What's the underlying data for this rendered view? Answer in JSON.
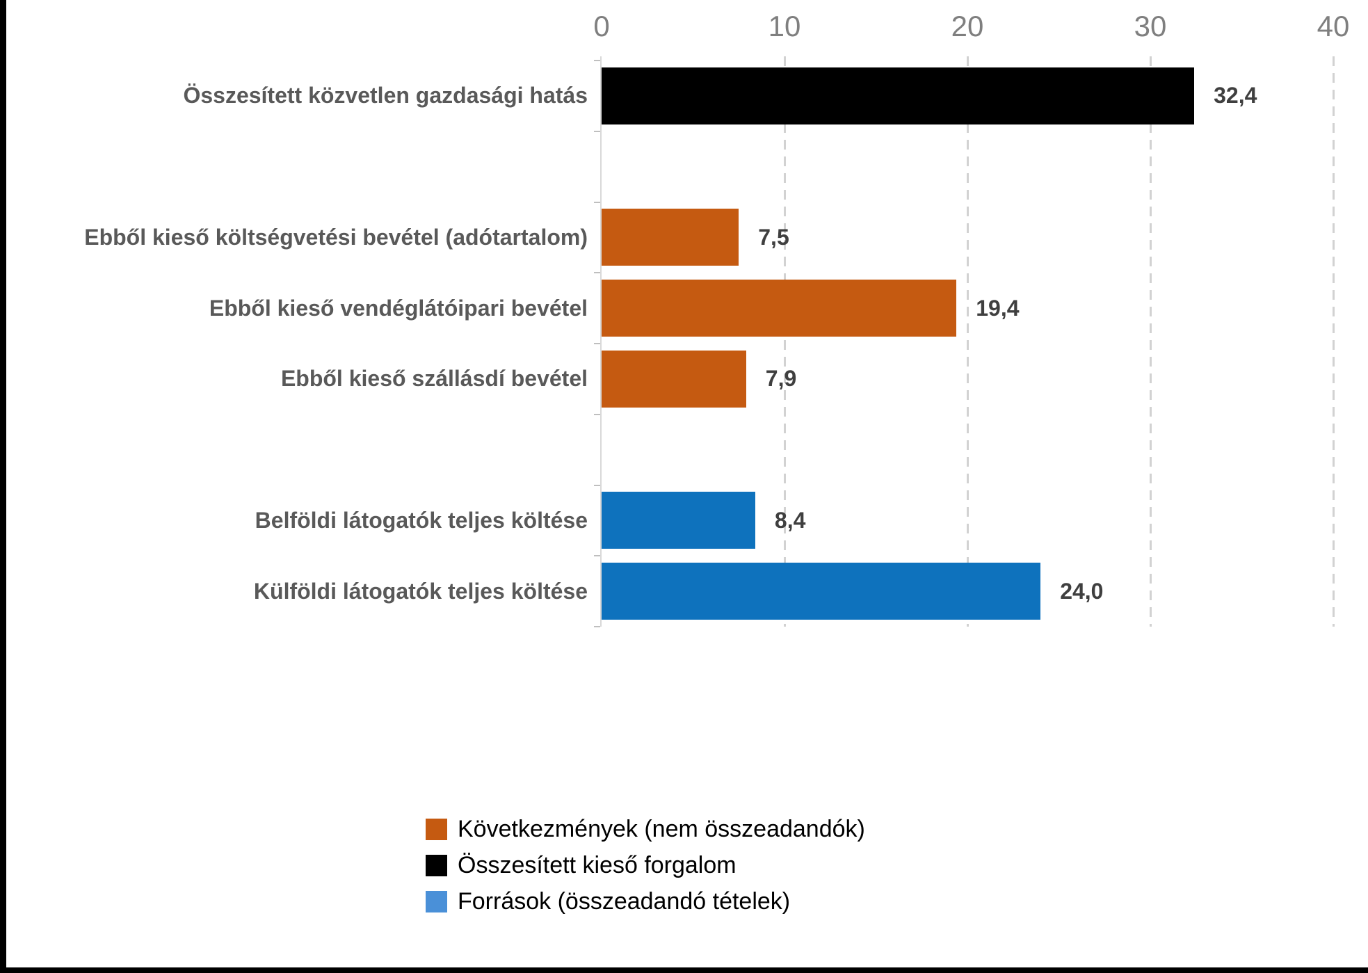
{
  "chart_data": {
    "type": "bar",
    "orientation": "horizontal",
    "title": "",
    "x_axis": {
      "position": "top",
      "min": 0,
      "max": 40,
      "ticks": [
        0,
        10,
        20,
        30,
        40
      ],
      "gridlines": "dashed-vertical"
    },
    "rows": [
      {
        "label": "Összesített közvetlen gazdasági hatás",
        "value": 32.4,
        "value_label": "32,4",
        "series": "Összesített kieső forgalom",
        "color": "#000000"
      },
      {
        "label": "",
        "value": null,
        "value_label": "",
        "series": "",
        "color": ""
      },
      {
        "label": "Ebből kieső költségvetési bevétel (adótartalom)",
        "value": 7.5,
        "value_label": "7,5",
        "series": "Következmények (nem összeadandók)",
        "color": "#C55A11"
      },
      {
        "label": "Ebből kieső vendéglátóipari bevétel",
        "value": 19.4,
        "value_label": "19,4",
        "series": "Következmények (nem összeadandók)",
        "color": "#C55A11"
      },
      {
        "label": "Ebből kieső szállásdí bevétel",
        "value": 7.9,
        "value_label": "7,9",
        "series": "Következmények (nem összeadandók)",
        "color": "#C55A11"
      },
      {
        "label": "",
        "value": null,
        "value_label": "",
        "series": "",
        "color": ""
      },
      {
        "label": "Belföldi látogatók teljes költése",
        "value": 8.4,
        "value_label": "8,4",
        "series": "Források (összeadandó tételek)",
        "color": "#0E72BD"
      },
      {
        "label": "Külföldi látogatók teljes költése",
        "value": 24.0,
        "value_label": "24,0",
        "series": "Források (összeadandó tételek)",
        "color": "#0E72BD"
      }
    ],
    "legend": {
      "position": "bottom",
      "items": [
        {
          "label": "Következmények (nem összeadandók)",
          "color": "#C55A11"
        },
        {
          "label": "Összesített kieső forgalom",
          "color": "#000000"
        },
        {
          "label": "Források (összeadandó tételek)",
          "color": "#4A90D8"
        }
      ]
    },
    "colors": {
      "axis_text": "#7F7F7F",
      "category_text": "#595959",
      "value_text": "#3F3F3F",
      "gridline": "#D2D2D2",
      "axis_line": "#D9D9D9",
      "background": "#FFFFFF",
      "frame_edge": "#000000"
    }
  }
}
